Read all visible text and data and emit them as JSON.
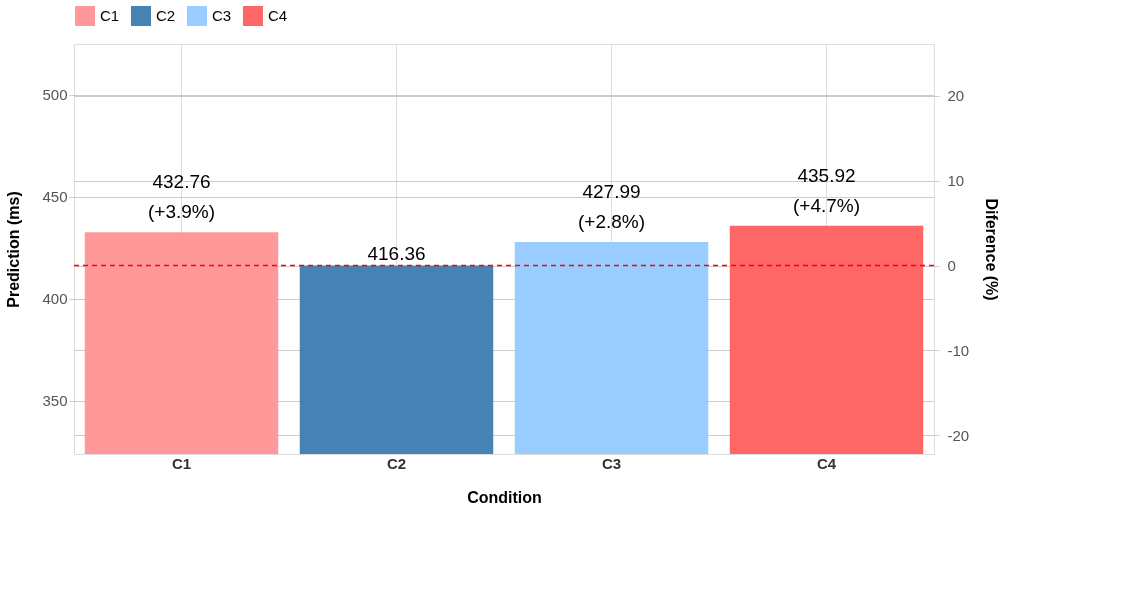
{
  "chart_data": {
    "type": "bar",
    "categories": [
      "C1",
      "C2",
      "C3",
      "C4"
    ],
    "series": [
      {
        "name": "C1",
        "color": "#ff9999",
        "values": [
          432.76,
          null,
          null,
          null
        ]
      },
      {
        "name": "C2",
        "color": "#4682b4",
        "values": [
          null,
          416.36,
          null,
          null
        ]
      },
      {
        "name": "C3",
        "color": "#99ccff",
        "values": [
          null,
          null,
          427.99,
          null
        ]
      },
      {
        "name": "C4",
        "color": "#ff6666",
        "values": [
          null,
          null,
          null,
          435.92
        ]
      }
    ],
    "xlabel": "Condition",
    "ylabel": "Prediction (ms)",
    "y2label": "Diference (%)",
    "ylim": [
      324,
      525
    ],
    "yticks": [
      350,
      400,
      450,
      500
    ],
    "y2lim": [
      -22.2,
      26.1
    ],
    "y2ticks": [
      -20,
      -10,
      0,
      10,
      20
    ],
    "ref_lines": [
      {
        "axis": "y",
        "value": 416.36,
        "color": "#ff0000",
        "line_style": "dashed"
      }
    ],
    "annotations": [
      {
        "text": "(+3.9%)",
        "x": "C1",
        "y": 432.76
      },
      {
        "text": "(+2.8%)",
        "x": "C3",
        "y": 427.99
      },
      {
        "text": "(+4.7%)",
        "x": "C4",
        "y": 435.92
      }
    ],
    "data_labels": true,
    "grid": true,
    "legend": "top"
  }
}
